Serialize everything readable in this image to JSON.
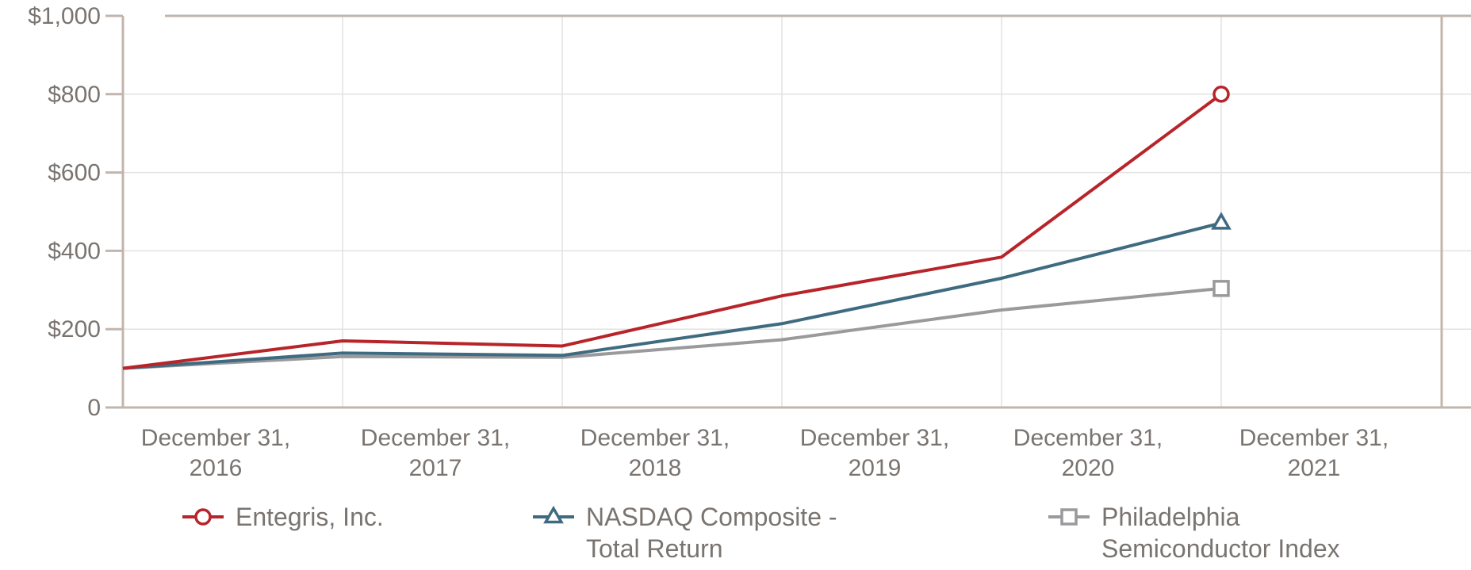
{
  "chart_data": {
    "type": "line",
    "title": "",
    "xlabel": "",
    "ylabel": "",
    "ylim": [
      0,
      1000
    ],
    "yticks": [
      0,
      200,
      400,
      600,
      800,
      1000
    ],
    "ytick_labels": [
      "0",
      "$200",
      "$400",
      "$600",
      "$800",
      "$1,000"
    ],
    "categories": [
      [
        "December 31,",
        "2016"
      ],
      [
        "December 31,",
        "2017"
      ],
      [
        "December 31,",
        "2018"
      ],
      [
        "December 31,",
        "2019"
      ],
      [
        "December 31,",
        "2020"
      ],
      [
        "December 31,",
        "2021"
      ]
    ],
    "grid": true,
    "legend_position": "bottom",
    "series": [
      {
        "name": "Entegris, Inc.",
        "name_lines": [
          "Entegris, Inc."
        ],
        "color": "#b7242a",
        "marker": "circle",
        "values": [
          100,
          170,
          157,
          285,
          384,
          800
        ]
      },
      {
        "name": "NASDAQ Composite - Total Return",
        "name_lines": [
          "NASDAQ Composite -",
          "Total Return"
        ],
        "color": "#3f6b80",
        "marker": "triangle",
        "values": [
          100,
          139,
          133,
          214,
          330,
          471
        ]
      },
      {
        "name": "Philadelphia Semiconductor Index",
        "name_lines": [
          "Philadelphia",
          "Semiconductor Index"
        ],
        "color": "#9a999b",
        "marker": "square",
        "values": [
          100,
          130,
          128,
          173,
          249,
          304
        ]
      }
    ]
  }
}
